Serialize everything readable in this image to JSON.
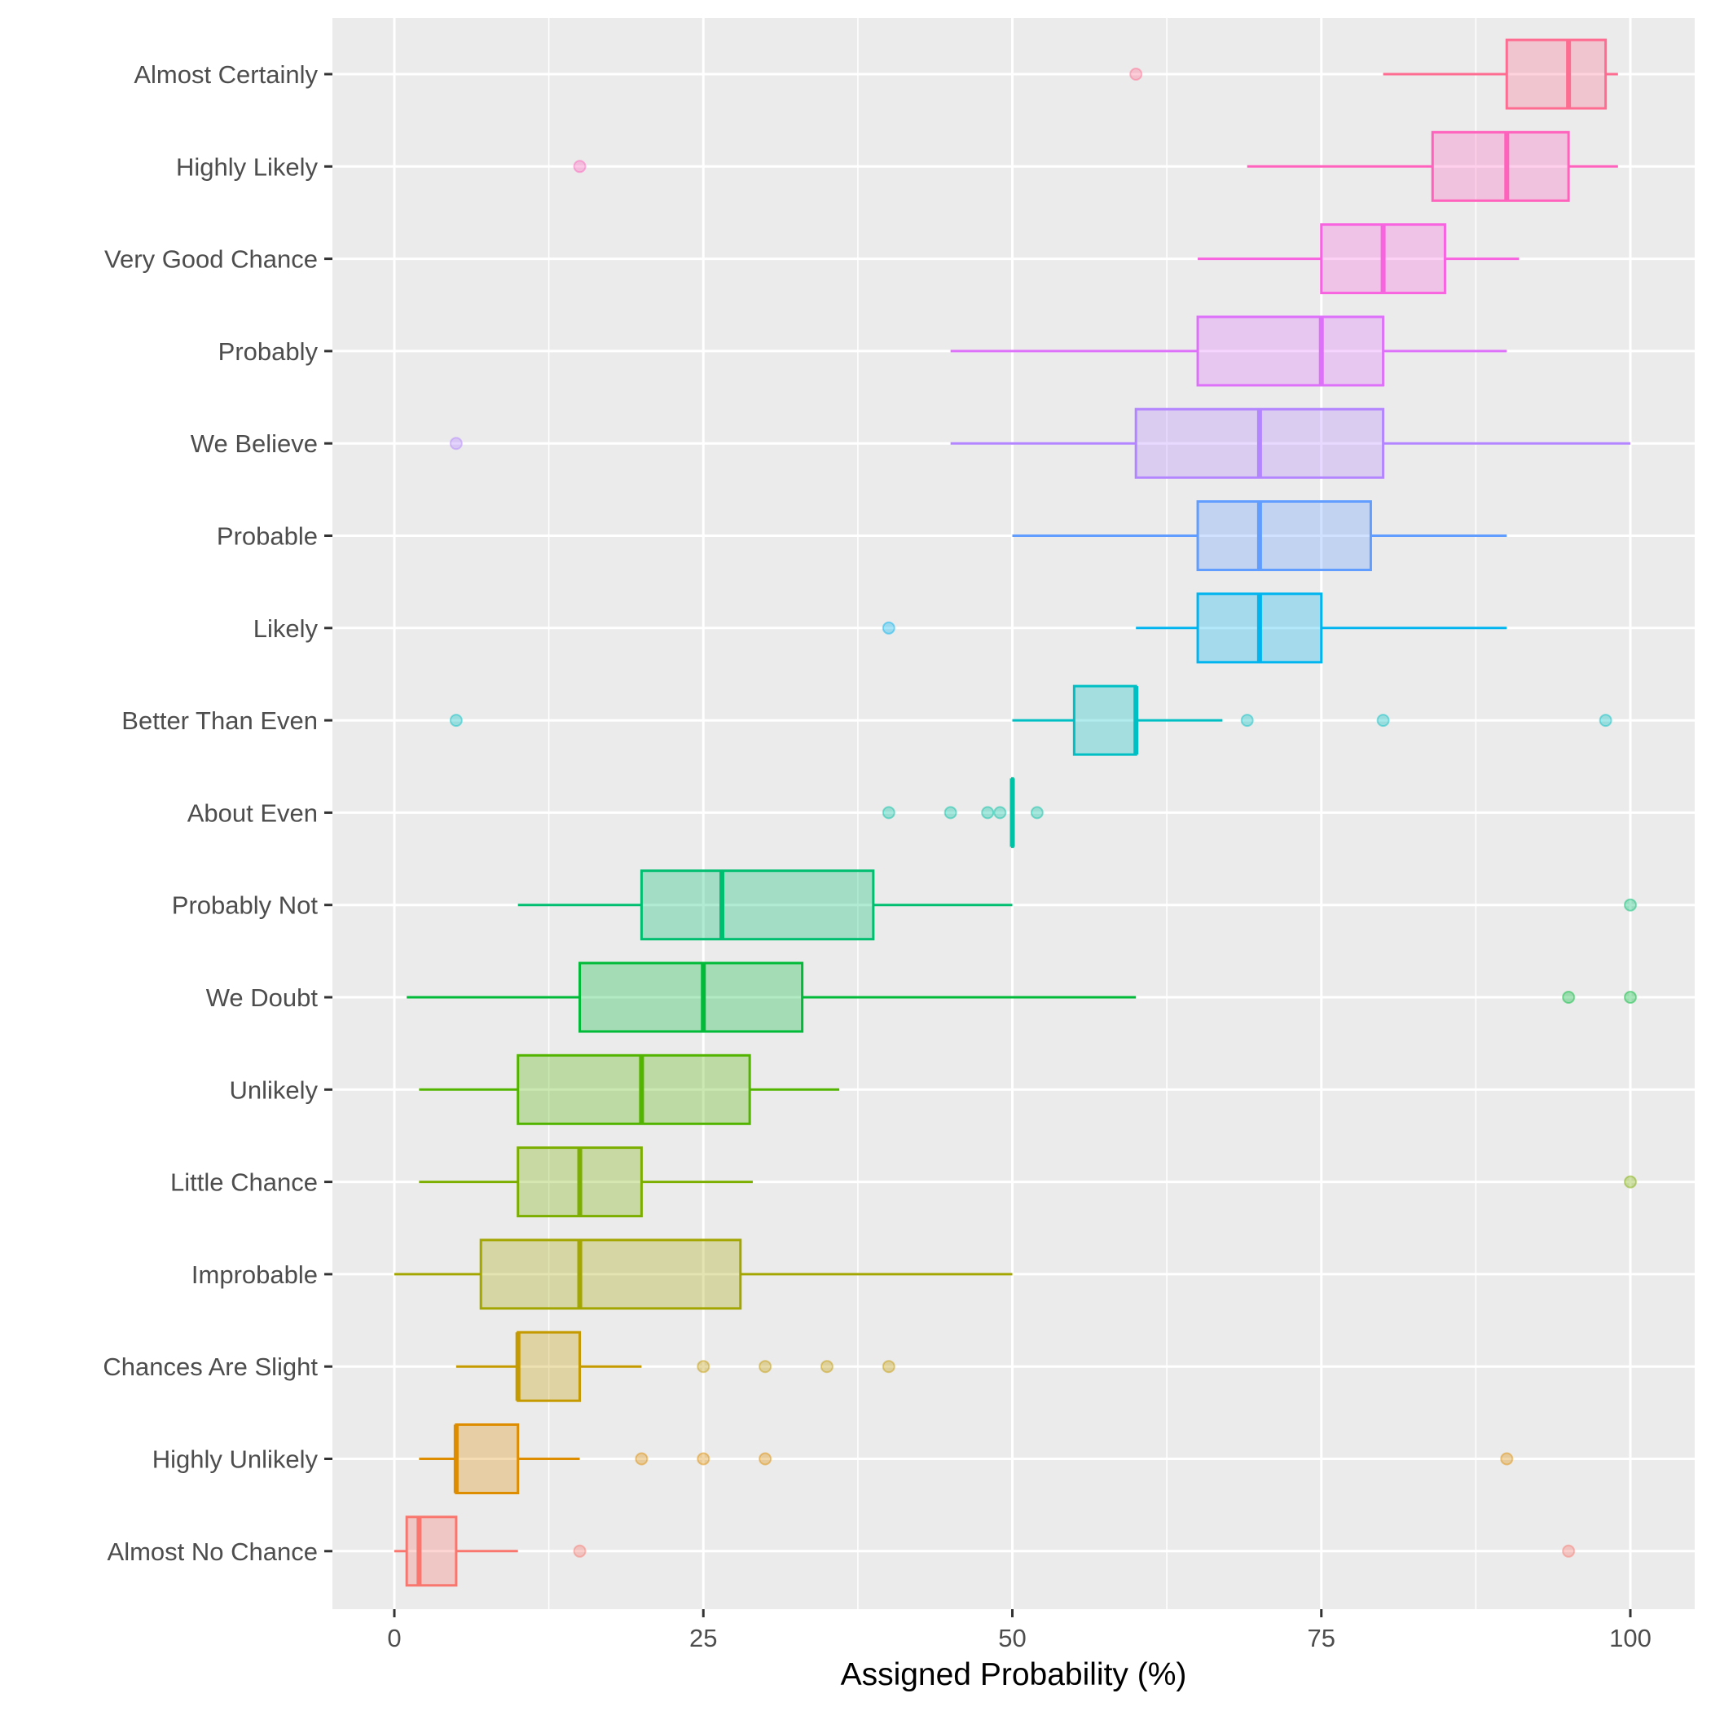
{
  "chart_data": {
    "type": "boxplot",
    "orientation": "horizontal",
    "title": "",
    "xlabel": "Assigned Probability (%)",
    "ylabel": "",
    "xlim": [
      -4,
      105
    ],
    "x_ticks": [
      0,
      25,
      50,
      75,
      100
    ],
    "x_tick_labels": [
      "0",
      "25",
      "50",
      "75",
      "100"
    ],
    "grid": true,
    "legend": "none",
    "panel_background": "#EBEBEB",
    "categories": [
      "Almost Certainly",
      "Highly Likely",
      "Very Good Chance",
      "Probably",
      "We Believe",
      "Probable",
      "Likely",
      "Better Than Even",
      "About Even",
      "Probably Not",
      "We Doubt",
      "Unlikely",
      "Little Chance",
      "Improbable",
      "Chances Are Slight",
      "Highly Unlikely",
      "Almost No Chance"
    ],
    "series": [
      {
        "name": "Almost Certainly",
        "color": "#FF6C91",
        "whisker_low": 80,
        "q1": 90,
        "median": 95,
        "q3": 98,
        "whisker_high": 99,
        "outliers": [
          60
        ]
      },
      {
        "name": "Highly Likely",
        "color": "#FF62BC",
        "whisker_low": 69,
        "q1": 84,
        "median": 90,
        "q3": 95,
        "whisker_high": 99,
        "outliers": [
          15
        ]
      },
      {
        "name": "Very Good Chance",
        "color": "#F863DF",
        "whisker_low": 65,
        "q1": 75,
        "median": 80,
        "q3": 85,
        "whisker_high": 91,
        "outliers": []
      },
      {
        "name": "Probably",
        "color": "#DE71F9",
        "whisker_low": 45,
        "q1": 65,
        "median": 75,
        "q3": 80,
        "whisker_high": 90,
        "outliers": []
      },
      {
        "name": "We Believe",
        "color": "#B385FF",
        "whisker_low": 45,
        "q1": 60,
        "median": 70,
        "q3": 80,
        "whisker_high": 100,
        "outliers": [
          5
        ]
      },
      {
        "name": "Probable",
        "color": "#619CFF",
        "whisker_low": 50,
        "q1": 65,
        "median": 70,
        "q3": 79,
        "whisker_high": 90,
        "outliers": []
      },
      {
        "name": "Likely",
        "color": "#00B4F0",
        "whisker_low": 60,
        "q1": 65,
        "median": 70,
        "q3": 75,
        "whisker_high": 90,
        "outliers": [
          40
        ]
      },
      {
        "name": "Better Than Even",
        "color": "#00BFC4",
        "whisker_low": 50,
        "q1": 55,
        "median": 60,
        "q3": 60,
        "whisker_high": 67,
        "outliers": [
          5,
          69,
          80,
          98
        ]
      },
      {
        "name": "About Even",
        "color": "#00C1A3",
        "whisker_low": 50,
        "q1": 50,
        "median": 50,
        "q3": 50,
        "whisker_high": 50,
        "outliers": [
          40,
          45,
          48,
          49,
          52
        ]
      },
      {
        "name": "Probably Not",
        "color": "#00BE70",
        "whisker_low": 10,
        "q1": 20,
        "median": 26.5,
        "q3": 38.75,
        "whisker_high": 50,
        "outliers": [
          100
        ]
      },
      {
        "name": "We Doubt",
        "color": "#00BA38",
        "whisker_low": 1,
        "q1": 15,
        "median": 25,
        "q3": 33,
        "whisker_high": 60,
        "outliers": [
          95,
          100
        ]
      },
      {
        "name": "Unlikely",
        "color": "#53B400",
        "whisker_low": 2,
        "q1": 10,
        "median": 20,
        "q3": 28.75,
        "whisker_high": 36,
        "outliers": []
      },
      {
        "name": "Little Chance",
        "color": "#7CAE00",
        "whisker_low": 2,
        "q1": 10,
        "median": 15,
        "q3": 20,
        "whisker_high": 29,
        "outliers": [
          100
        ]
      },
      {
        "name": "Improbable",
        "color": "#A3A500",
        "whisker_low": 0,
        "q1": 7,
        "median": 15,
        "q3": 28,
        "whisker_high": 50,
        "outliers": []
      },
      {
        "name": "Chances Are Slight",
        "color": "#C49A00",
        "whisker_low": 5,
        "q1": 10,
        "median": 10,
        "q3": 15,
        "whisker_high": 20,
        "outliers": [
          25,
          30,
          35,
          40
        ]
      },
      {
        "name": "Highly Unlikely",
        "color": "#DE8C00",
        "whisker_low": 2,
        "q1": 5,
        "median": 5,
        "q3": 10,
        "whisker_high": 15,
        "outliers": [
          20,
          25,
          30,
          90
        ]
      },
      {
        "name": "Almost No Chance",
        "color": "#F8766D",
        "whisker_low": 0,
        "q1": 1,
        "median": 2,
        "q3": 5,
        "whisker_high": 10,
        "outliers": [
          15,
          95
        ]
      }
    ]
  }
}
